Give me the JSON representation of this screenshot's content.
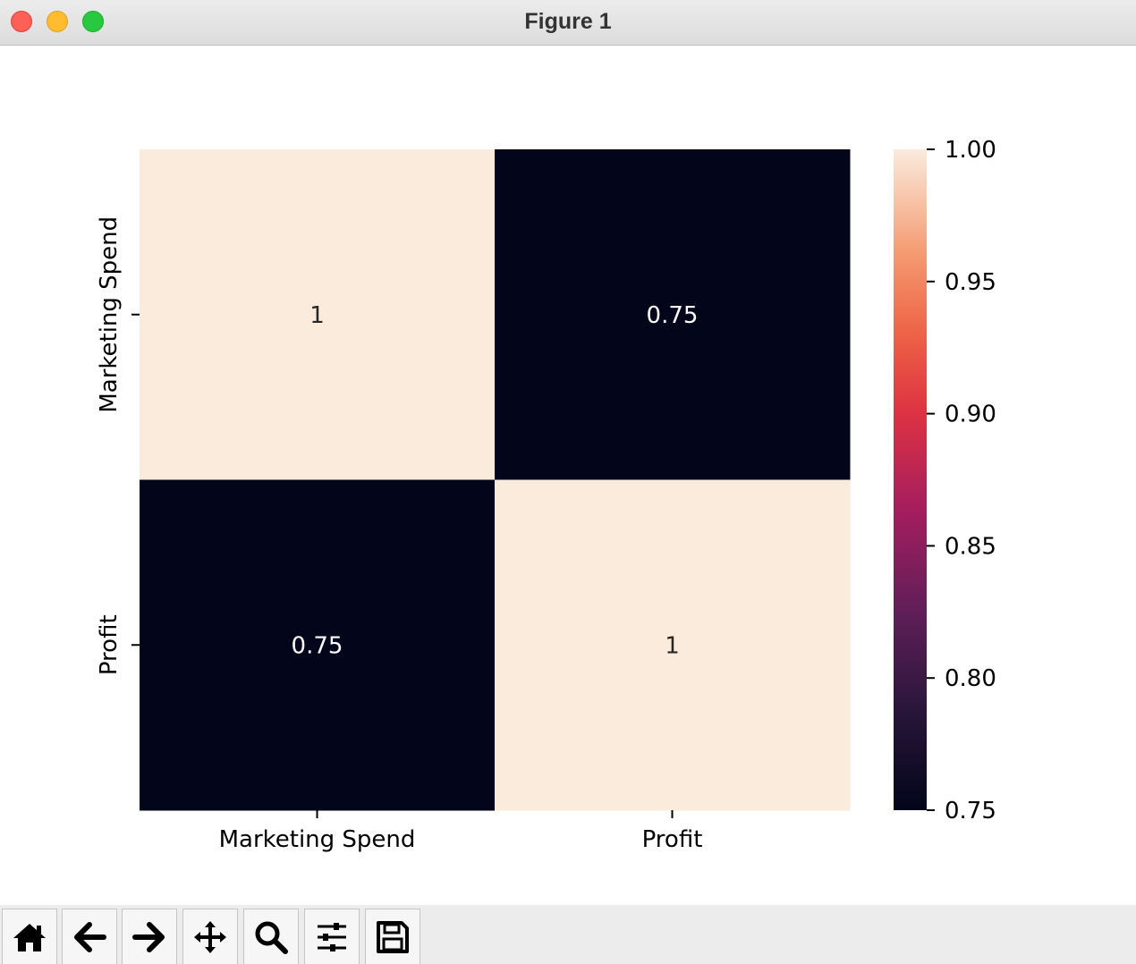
{
  "window": {
    "title": "Figure 1"
  },
  "toolbar": {
    "buttons": [
      {
        "name": "home-icon"
      },
      {
        "name": "back-arrow-icon"
      },
      {
        "name": "forward-arrow-icon"
      },
      {
        "name": "pan-icon"
      },
      {
        "name": "zoom-icon"
      },
      {
        "name": "configure-subplots-icon"
      },
      {
        "name": "save-icon"
      }
    ]
  },
  "chart_data": {
    "type": "heatmap",
    "title": "",
    "xlabel": "",
    "ylabel": "",
    "x_categories": [
      "Marketing Spend",
      "Profit"
    ],
    "y_categories": [
      "Marketing Spend",
      "Profit"
    ],
    "values": [
      [
        1,
        0.75
      ],
      [
        0.75,
        1
      ]
    ],
    "annotations": [
      [
        "1",
        "0.75"
      ],
      [
        "0.75",
        "1"
      ]
    ],
    "colormap": "rocket",
    "colorbar": {
      "range": [
        0.75,
        1.0
      ],
      "ticks": [
        "0.75",
        "0.80",
        "0.85",
        "0.90",
        "0.95",
        "1.00"
      ]
    },
    "colors": {
      "high": "#faebdd",
      "low": "#03051a",
      "text_on_dark": "#ffffff",
      "text_on_light": "#262626"
    }
  }
}
